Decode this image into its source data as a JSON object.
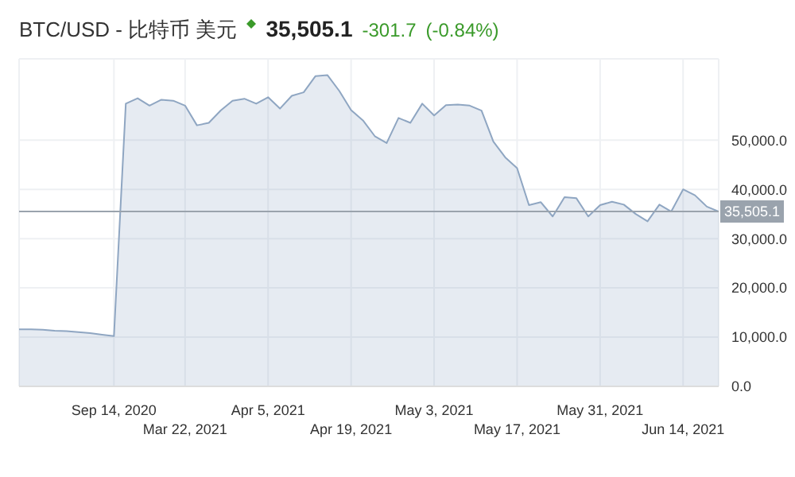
{
  "chart_data": {
    "type": "area",
    "title": "BTC/USD - 比特币 美元",
    "annotations": [
      "35,505.1",
      "-301.7",
      "(-0.84%)"
    ],
    "categories": [
      null,
      null,
      null,
      null,
      null,
      null,
      null,
      null,
      "Sep 14, 2020",
      null,
      null,
      null,
      null,
      null,
      "Mar 22, 2021",
      null,
      null,
      null,
      null,
      null,
      null,
      "Apr 5, 2021",
      null,
      null,
      null,
      null,
      null,
      null,
      "Apr 19, 2021",
      null,
      null,
      null,
      null,
      null,
      null,
      "May 3, 2021",
      null,
      null,
      null,
      null,
      null,
      null,
      "May 17, 2021",
      null,
      null,
      null,
      null,
      null,
      null,
      "May 31, 2021",
      null,
      null,
      null,
      null,
      null,
      null,
      "Jun 14, 2021",
      null,
      null,
      null
    ],
    "series": [
      {
        "color": "#8fa6c2",
        "values": [
          11600,
          11600,
          11500,
          11300,
          11200,
          11000,
          10800,
          10500,
          10200,
          57400,
          58500,
          57000,
          58200,
          58000,
          57000,
          53000,
          53500,
          56000,
          58000,
          58400,
          57400,
          58700,
          56400,
          59000,
          59700,
          63000,
          63200,
          60000,
          56100,
          54000,
          50800,
          49400,
          54500,
          53500,
          57400,
          55000,
          57100,
          57200,
          57000,
          56000,
          49700,
          46500,
          44300,
          36800,
          37400,
          34500,
          38400,
          38200,
          34500,
          36800,
          37500,
          36900,
          35000,
          33500,
          36900,
          35500,
          40000,
          38800,
          36500,
          35505.1
        ]
      }
    ],
    "ylim": [
      0,
      66500
    ],
    "yticks": [
      {
        "value": 0,
        "label": "0.0"
      },
      {
        "value": 10000,
        "label": "10,000.0"
      },
      {
        "value": 20000,
        "label": "20,000.0"
      },
      {
        "value": 30000,
        "label": "30,000.0"
      },
      {
        "value": 40000,
        "label": "40,000.0"
      },
      {
        "value": 50000,
        "label": "50,000.0"
      }
    ],
    "ref_lines": [
      {
        "axis": "y",
        "value": 35505.1,
        "label": "35,505.1",
        "color": "#9aa3ad"
      }
    ],
    "grid": true
  }
}
